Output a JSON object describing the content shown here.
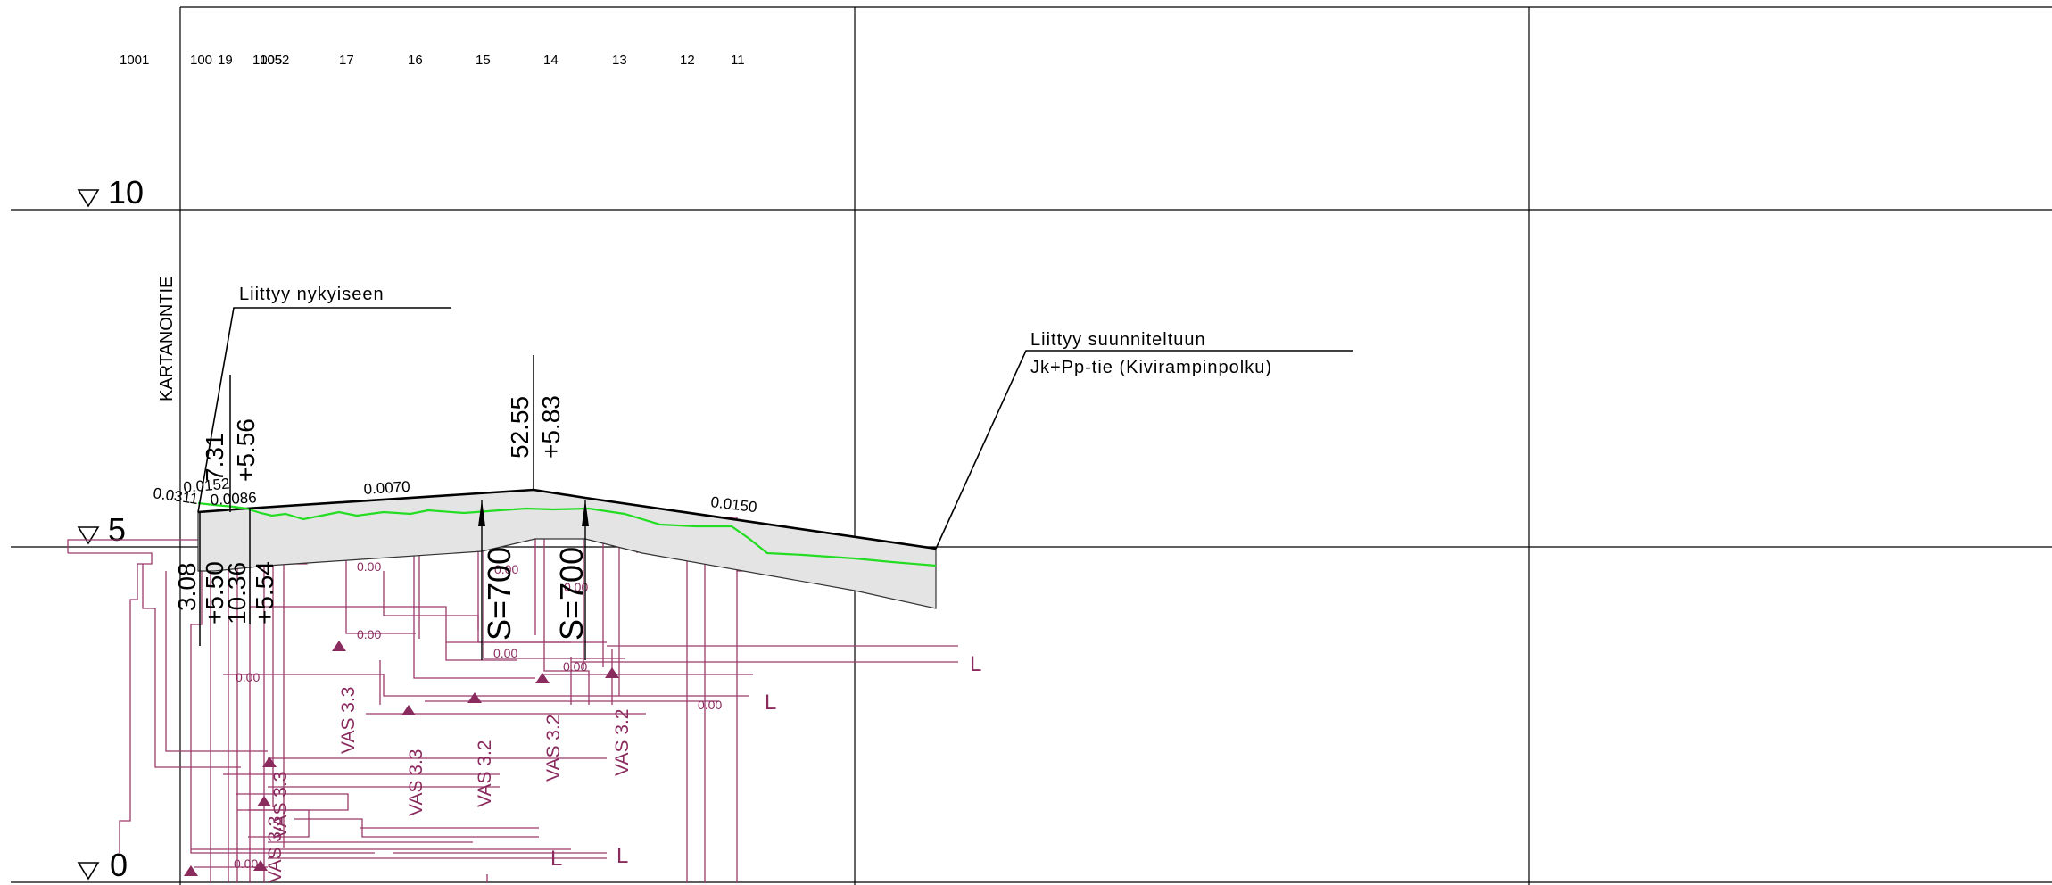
{
  "station_labels": [
    "1001",
    "100",
    "19",
    "1005",
    "1052",
    "17",
    "16",
    "15",
    "14",
    "13",
    "12",
    "11"
  ],
  "elevation_markers": [
    "10",
    "5",
    "0"
  ],
  "road_label": "KARTANONTIE",
  "annotations": {
    "connect_existing": "Liittyy nykyiseen",
    "connect_planned_line1": "Liittyy suunniteltuun",
    "connect_planned_line2": "Jk+Pp-tie (Kivirampinpolku)"
  },
  "slopes": [
    "0.0311",
    "0.0152",
    "0.0086",
    "0.0070",
    "0.0150"
  ],
  "vertical_points": {
    "vp1_station": "7.31",
    "vp1_elevation": "+5.56",
    "vp2_station": "52.55",
    "vp2_elevation": "+5.83",
    "left_station_a": "3.08",
    "left_elevation_a": "+5.50",
    "left_station_b": "10.36",
    "left_elevation_b": "+5.54"
  },
  "curves": [
    "S=700",
    "S=700"
  ],
  "pipe_labels": [
    "VAS 3.3",
    "VAS 3.3",
    "VAS 3.2",
    "VAS 3.2",
    "VAS 3.2",
    "VAS 3.3",
    "VAS 3.3"
  ],
  "pipe_end_marks": [
    "L",
    "L",
    "L",
    "L"
  ],
  "small_values": [
    "0.00",
    "0.00",
    "0.00",
    "0.00",
    "0.00",
    "0.00",
    "0.00",
    "0.00",
    "0.00"
  ],
  "colors": {
    "ink": "#000000",
    "utility": "#9b3a6b",
    "terrain": "#22dd22",
    "structure_fill": "#e4e4e4"
  }
}
